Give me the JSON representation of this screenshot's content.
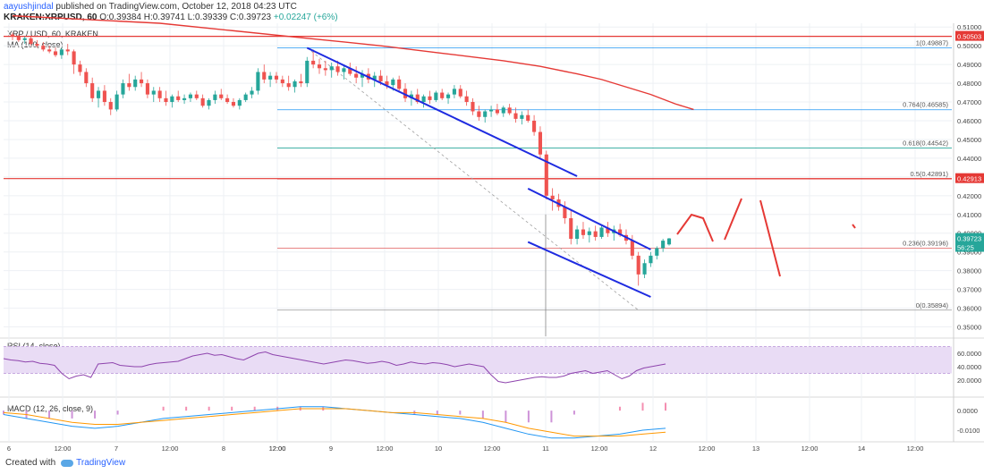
{
  "header": {
    "author": "aayushjindal",
    "published_text": "published on TradingView.com, October 12, 2018 04:23 UTC",
    "symbol_line": "KRAKEN:XRPUSD, 60",
    "change": "+0.02247 (+6%)",
    "ohlc": "O:0.39384 H:0.39741 L:0.39339 C:0.39723"
  },
  "chart_title": "XRP / USD, 60, KRAKEN",
  "ma_label": "MA (100, close)",
  "rsi_label": "RSI (14, close)",
  "macd_label": "MACD (12, 26, close, 9)",
  "footer": {
    "created_with": "Created with",
    "brand": "TradingView"
  },
  "colors": {
    "up": "#26a69a",
    "down": "#ef5350",
    "ma": "#e53935",
    "trend": "#1e2be0",
    "fib_line": "#2196f3",
    "resistance": "#e53935",
    "rsi": "#8e44ad",
    "rsi_band": "#e9dcf5",
    "macd": "#2196f3",
    "signal": "#ff9800"
  },
  "chart_data": {
    "type": "candlestick",
    "price_axis": {
      "min": 0.35,
      "max": 0.51,
      "ticks": [
        "0.51000",
        "0.50000",
        "0.49000",
        "0.48000",
        "0.47000",
        "0.46000",
        "0.45000",
        "0.44000",
        "0.43000",
        "0.42000",
        "0.41000",
        "0.40000",
        "0.39000",
        "0.38000",
        "0.37000",
        "0.36000",
        "0.35000"
      ]
    },
    "time_axis": {
      "labels": [
        "6",
        "12:00",
        "7",
        "12:00",
        "8",
        "12:00",
        "12:00",
        "9",
        "12:00",
        "10",
        "12:00",
        "11",
        "12:00",
        "12",
        "12:00",
        "13",
        "12:00",
        "14",
        "12:00"
      ]
    },
    "price_badges": [
      {
        "value": "0.50503",
        "color": "#e53935"
      },
      {
        "value": "0.42913",
        "color": "#e53935"
      },
      {
        "value": "0.39723",
        "color": "#26a69a"
      },
      {
        "value": "56:25",
        "color": "#26a69a"
      }
    ],
    "horizontal_levels": [
      {
        "price": 0.50503,
        "color": "#e53935",
        "style": "solid"
      },
      {
        "price": 0.42913,
        "color": "#e53935",
        "style": "solid"
      }
    ],
    "fibonacci": [
      {
        "ratio": "1",
        "price": 0.49887,
        "label": "1(0.49887)",
        "color": "#2196f3"
      },
      {
        "ratio": "0.764",
        "price": 0.46585,
        "label": "0.764(0.46585)",
        "color": "#2196f3"
      },
      {
        "ratio": "0.618",
        "price": 0.44542,
        "label": "0.618(0.44542)",
        "color": "#26a69a"
      },
      {
        "ratio": "0.5",
        "price": 0.42891,
        "label": "0.5(0.42891)",
        "color": "#e53935"
      },
      {
        "ratio": "0.236",
        "price": 0.39196,
        "label": "0.236(0.39196)",
        "color": "#e57373"
      },
      {
        "ratio": "0",
        "price": 0.35894,
        "label": "0(0.35894)",
        "color": "#999999"
      }
    ],
    "rsi_axis": {
      "ticks": [
        "60.0000",
        "40.0000",
        "20.0000"
      ],
      "min": 0,
      "max": 80,
      "band": [
        30,
        70
      ]
    },
    "macd_axis": {
      "ticks": [
        "0.0000",
        "-0.0100"
      ],
      "min": -0.015,
      "max": 0.006
    },
    "candles": [
      [
        0.506,
        0.507,
        0.503,
        0.505
      ],
      [
        0.505,
        0.506,
        0.502,
        0.503
      ],
      [
        0.503,
        0.505,
        0.501,
        0.504
      ],
      [
        0.504,
        0.505,
        0.5,
        0.501
      ],
      [
        0.501,
        0.503,
        0.499,
        0.5
      ],
      [
        0.5,
        0.502,
        0.497,
        0.498
      ],
      [
        0.498,
        0.5,
        0.496,
        0.497
      ],
      [
        0.497,
        0.499,
        0.494,
        0.495
      ],
      [
        0.495,
        0.499,
        0.493,
        0.498
      ],
      [
        0.498,
        0.501,
        0.495,
        0.497
      ],
      [
        0.497,
        0.498,
        0.485,
        0.49
      ],
      [
        0.49,
        0.492,
        0.484,
        0.486
      ],
      [
        0.486,
        0.488,
        0.478,
        0.48
      ],
      [
        0.48,
        0.483,
        0.47,
        0.472
      ],
      [
        0.472,
        0.478,
        0.467,
        0.476
      ],
      [
        0.476,
        0.479,
        0.468,
        0.47
      ],
      [
        0.47,
        0.472,
        0.463,
        0.466
      ],
      [
        0.466,
        0.476,
        0.465,
        0.474
      ],
      [
        0.474,
        0.482,
        0.472,
        0.48
      ],
      [
        0.48,
        0.485,
        0.476,
        0.478
      ],
      [
        0.478,
        0.484,
        0.476,
        0.482
      ],
      [
        0.482,
        0.486,
        0.478,
        0.48
      ],
      [
        0.48,
        0.482,
        0.472,
        0.474
      ],
      [
        0.474,
        0.478,
        0.47,
        0.476
      ],
      [
        0.476,
        0.478,
        0.47,
        0.472
      ],
      [
        0.472,
        0.476,
        0.468,
        0.47
      ],
      [
        0.47,
        0.474,
        0.467,
        0.473
      ],
      [
        0.473,
        0.476,
        0.47,
        0.471
      ],
      [
        0.471,
        0.474,
        0.469,
        0.472
      ],
      [
        0.472,
        0.475,
        0.47,
        0.474
      ],
      [
        0.474,
        0.476,
        0.471,
        0.472
      ],
      [
        0.472,
        0.474,
        0.467,
        0.468
      ],
      [
        0.468,
        0.472,
        0.466,
        0.471
      ],
      [
        0.471,
        0.476,
        0.469,
        0.474
      ],
      [
        0.474,
        0.477,
        0.471,
        0.472
      ],
      [
        0.472,
        0.474,
        0.469,
        0.47
      ],
      [
        0.47,
        0.472,
        0.467,
        0.468
      ],
      [
        0.468,
        0.472,
        0.466,
        0.471
      ],
      [
        0.471,
        0.475,
        0.47,
        0.474
      ],
      [
        0.474,
        0.478,
        0.472,
        0.476
      ],
      [
        0.476,
        0.488,
        0.474,
        0.486
      ],
      [
        0.486,
        0.49,
        0.48,
        0.482
      ],
      [
        0.482,
        0.486,
        0.478,
        0.484
      ],
      [
        0.484,
        0.486,
        0.48,
        0.482
      ],
      [
        0.482,
        0.484,
        0.478,
        0.48
      ],
      [
        0.48,
        0.484,
        0.476,
        0.478
      ],
      [
        0.478,
        0.482,
        0.475,
        0.481
      ],
      [
        0.481,
        0.485,
        0.478,
        0.48
      ],
      [
        0.48,
        0.494,
        0.478,
        0.492
      ],
      [
        0.492,
        0.498,
        0.488,
        0.49
      ],
      [
        0.49,
        0.493,
        0.485,
        0.488
      ],
      [
        0.488,
        0.492,
        0.484,
        0.487
      ],
      [
        0.487,
        0.491,
        0.483,
        0.489
      ],
      [
        0.489,
        0.492,
        0.484,
        0.486
      ],
      [
        0.486,
        0.49,
        0.482,
        0.488
      ],
      [
        0.488,
        0.491,
        0.484,
        0.485
      ],
      [
        0.485,
        0.489,
        0.48,
        0.483
      ],
      [
        0.483,
        0.487,
        0.478,
        0.485
      ],
      [
        0.485,
        0.488,
        0.48,
        0.482
      ],
      [
        0.482,
        0.486,
        0.478,
        0.484
      ],
      [
        0.484,
        0.487,
        0.479,
        0.481
      ],
      [
        0.481,
        0.484,
        0.477,
        0.479
      ],
      [
        0.479,
        0.483,
        0.476,
        0.482
      ],
      [
        0.482,
        0.484,
        0.475,
        0.477
      ],
      [
        0.477,
        0.48,
        0.47,
        0.472
      ],
      [
        0.472,
        0.476,
        0.468,
        0.474
      ],
      [
        0.474,
        0.477,
        0.469,
        0.47
      ],
      [
        0.47,
        0.474,
        0.467,
        0.473
      ],
      [
        0.473,
        0.476,
        0.469,
        0.471
      ],
      [
        0.471,
        0.476,
        0.47,
        0.475
      ],
      [
        0.475,
        0.477,
        0.471,
        0.472
      ],
      [
        0.472,
        0.475,
        0.469,
        0.474
      ],
      [
        0.474,
        0.479,
        0.472,
        0.477
      ],
      [
        0.477,
        0.479,
        0.472,
        0.473
      ],
      [
        0.473,
        0.476,
        0.468,
        0.47
      ],
      [
        0.47,
        0.472,
        0.463,
        0.465
      ],
      [
        0.465,
        0.468,
        0.46,
        0.462
      ],
      [
        0.462,
        0.466,
        0.459,
        0.465
      ],
      [
        0.465,
        0.468,
        0.462,
        0.466
      ],
      [
        0.466,
        0.469,
        0.463,
        0.464
      ],
      [
        0.464,
        0.468,
        0.462,
        0.467
      ],
      [
        0.467,
        0.469,
        0.463,
        0.464
      ],
      [
        0.464,
        0.467,
        0.459,
        0.461
      ],
      [
        0.461,
        0.465,
        0.458,
        0.463
      ],
      [
        0.463,
        0.466,
        0.459,
        0.46
      ],
      [
        0.46,
        0.463,
        0.452,
        0.454
      ],
      [
        0.454,
        0.457,
        0.44,
        0.442
      ],
      [
        0.442,
        0.444,
        0.418,
        0.42
      ],
      [
        0.42,
        0.424,
        0.412,
        0.418
      ],
      [
        0.418,
        0.421,
        0.412,
        0.414
      ],
      [
        0.414,
        0.417,
        0.405,
        0.408
      ],
      [
        0.408,
        0.412,
        0.394,
        0.397
      ],
      [
        0.397,
        0.404,
        0.394,
        0.402
      ],
      [
        0.402,
        0.406,
        0.397,
        0.399
      ],
      [
        0.399,
        0.403,
        0.395,
        0.401
      ],
      [
        0.401,
        0.404,
        0.396,
        0.398
      ],
      [
        0.398,
        0.404,
        0.397,
        0.403
      ],
      [
        0.403,
        0.406,
        0.398,
        0.4
      ],
      [
        0.4,
        0.404,
        0.396,
        0.402
      ],
      [
        0.402,
        0.405,
        0.398,
        0.399
      ],
      [
        0.399,
        0.402,
        0.394,
        0.396
      ],
      [
        0.396,
        0.399,
        0.386,
        0.388
      ],
      [
        0.388,
        0.39,
        0.372,
        0.378
      ],
      [
        0.378,
        0.386,
        0.376,
        0.384
      ],
      [
        0.384,
        0.39,
        0.382,
        0.388
      ],
      [
        0.388,
        0.393,
        0.386,
        0.392
      ],
      [
        0.392,
        0.397,
        0.39,
        0.396
      ],
      [
        0.394,
        0.3974,
        0.3934,
        0.3972
      ]
    ],
    "ma_100": [
      [
        0,
        0.516
      ],
      [
        12,
        0.514
      ],
      [
        24,
        0.512
      ],
      [
        36,
        0.508
      ],
      [
        48,
        0.504
      ],
      [
        60,
        0.5
      ],
      [
        70,
        0.496
      ],
      [
        80,
        0.492
      ],
      [
        86,
        0.489
      ],
      [
        92,
        0.485
      ],
      [
        96,
        0.482
      ],
      [
        100,
        0.478
      ],
      [
        104,
        0.474
      ],
      [
        108,
        0.469
      ],
      [
        111,
        0.466
      ]
    ],
    "annotations": {
      "trend_lines": [
        {
          "from": [
            0.49887,
            48
          ],
          "to": [
            0.4304,
            92
          ],
          "label": "upper-channel-resistance"
        },
        {
          "from": [
            0.4238,
            84
          ],
          "to": [
            0.3913,
            104
          ],
          "label": "falling-channel-top"
        },
        {
          "from": [
            0.3953,
            84
          ],
          "to": [
            0.366,
            104
          ],
          "label": "falling-channel-bottom"
        }
      ],
      "fib_diagonal": {
        "from": [
          0.49887,
          48
        ],
        "to": [
          0.35894,
          102
        ]
      }
    },
    "rsi": [
      52,
      50,
      49,
      47,
      48,
      45,
      44,
      42,
      30,
      22,
      26,
      28,
      24,
      44,
      45,
      46,
      42,
      41,
      40,
      40,
      43,
      45,
      46,
      47,
      48,
      52,
      56,
      58,
      60,
      57,
      58,
      55,
      52,
      50,
      55,
      60,
      62,
      58,
      56,
      54,
      52,
      50,
      48,
      46,
      44,
      46,
      48,
      50,
      49,
      47,
      45,
      46,
      48,
      46,
      42,
      44,
      47,
      45,
      44,
      46,
      45,
      43,
      40,
      42,
      44,
      42,
      40,
      28,
      18,
      16,
      18,
      20,
      22,
      24,
      25,
      24,
      24,
      26,
      30,
      32,
      34,
      30,
      32,
      34,
      28,
      22,
      26,
      34,
      38,
      40,
      42,
      44
    ],
    "macd_line": [
      -0.002,
      -0.004,
      -0.006,
      -0.008,
      -0.009,
      -0.008,
      -0.006,
      -0.004,
      -0.003,
      -0.002,
      -0.001,
      0.0,
      0.001,
      0.002,
      0.002,
      0.001,
      0.0,
      -0.001,
      -0.002,
      -0.003,
      -0.004,
      -0.006,
      -0.009,
      -0.012,
      -0.014,
      -0.014,
      -0.013,
      -0.012,
      -0.01,
      -0.009
    ],
    "signal_line": [
      -0.001,
      -0.002,
      -0.004,
      -0.006,
      -0.007,
      -0.007,
      -0.006,
      -0.005,
      -0.004,
      -0.003,
      -0.002,
      -0.001,
      0.0,
      0.001,
      0.001,
      0.001,
      0.0,
      -0.001,
      -0.001,
      -0.002,
      -0.003,
      -0.004,
      -0.006,
      -0.009,
      -0.011,
      -0.013,
      -0.013,
      -0.013,
      -0.012,
      -0.011
    ]
  }
}
